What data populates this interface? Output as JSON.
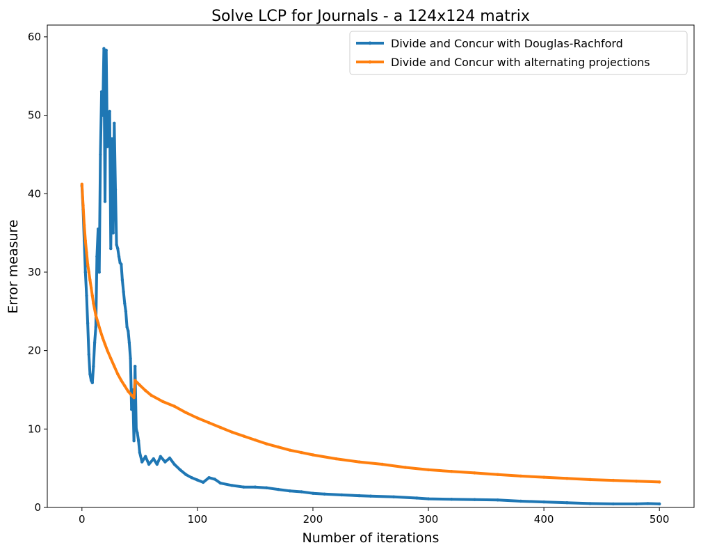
{
  "chart_data": {
    "type": "line",
    "title": "Solve LCP for Journals - a 124x124 matrix",
    "xlabel": "Number of iterations",
    "ylabel": "Error measure",
    "xlim": [
      -30,
      530
    ],
    "ylim": [
      0,
      61.5
    ],
    "xticks": [
      0,
      100,
      200,
      300,
      400,
      500
    ],
    "yticks": [
      0,
      10,
      20,
      30,
      40,
      50,
      60
    ],
    "grid": false,
    "legend": "top-right",
    "series": [
      {
        "name": "Divide and Concur with Douglas-Rachford",
        "color": "#1f77b4",
        "points": [
          [
            0,
            41
          ],
          [
            1,
            38
          ],
          [
            2,
            34
          ],
          [
            3,
            30
          ],
          [
            4,
            27
          ],
          [
            5,
            23.5
          ],
          [
            6,
            19.5
          ],
          [
            7,
            17
          ],
          [
            8,
            16.2
          ],
          [
            9,
            15.9
          ],
          [
            10,
            18
          ],
          [
            11,
            21
          ],
          [
            12,
            23
          ],
          [
            13,
            32
          ],
          [
            14,
            35.5
          ],
          [
            15,
            30
          ],
          [
            16,
            45
          ],
          [
            17,
            53
          ],
          [
            18,
            50
          ],
          [
            19,
            58.5
          ],
          [
            20,
            39
          ],
          [
            21,
            58.3
          ],
          [
            22,
            46
          ],
          [
            23,
            48
          ],
          [
            24,
            50.5
          ],
          [
            25,
            33
          ],
          [
            26,
            47
          ],
          [
            27,
            35
          ],
          [
            28,
            49
          ],
          [
            29,
            40.5
          ],
          [
            30,
            33.5
          ],
          [
            31,
            33
          ],
          [
            32,
            32
          ],
          [
            33,
            31.2
          ],
          [
            34,
            31
          ],
          [
            35,
            29
          ],
          [
            36,
            27.5
          ],
          [
            37,
            26
          ],
          [
            38,
            25
          ],
          [
            39,
            23
          ],
          [
            40,
            22.5
          ],
          [
            41,
            21
          ],
          [
            42,
            19
          ],
          [
            43,
            12.5
          ],
          [
            44,
            15
          ],
          [
            45,
            8.5
          ],
          [
            46,
            18
          ],
          [
            47,
            10
          ],
          [
            48,
            9.5
          ],
          [
            49,
            8.5
          ],
          [
            50,
            7
          ],
          [
            52,
            5.8
          ],
          [
            55,
            6.5
          ],
          [
            58,
            5.5
          ],
          [
            62,
            6.2
          ],
          [
            65,
            5.5
          ],
          [
            68,
            6.5
          ],
          [
            72,
            5.8
          ],
          [
            76,
            6.3
          ],
          [
            80,
            5.5
          ],
          [
            85,
            4.8
          ],
          [
            90,
            4.2
          ],
          [
            95,
            3.8
          ],
          [
            100,
            3.5
          ],
          [
            105,
            3.2
          ],
          [
            110,
            3.8
          ],
          [
            115,
            3.6
          ],
          [
            120,
            3.1
          ],
          [
            130,
            2.8
          ],
          [
            140,
            2.6
          ],
          [
            150,
            2.6
          ],
          [
            160,
            2.5
          ],
          [
            170,
            2.3
          ],
          [
            180,
            2.1
          ],
          [
            190,
            2.0
          ],
          [
            200,
            1.8
          ],
          [
            210,
            1.7
          ],
          [
            225,
            1.6
          ],
          [
            240,
            1.5
          ],
          [
            250,
            1.45
          ],
          [
            270,
            1.35
          ],
          [
            290,
            1.2
          ],
          [
            300,
            1.1
          ],
          [
            320,
            1.05
          ],
          [
            340,
            1.0
          ],
          [
            360,
            0.95
          ],
          [
            380,
            0.8
          ],
          [
            400,
            0.7
          ],
          [
            420,
            0.6
          ],
          [
            440,
            0.5
          ],
          [
            460,
            0.45
          ],
          [
            480,
            0.45
          ],
          [
            490,
            0.5
          ],
          [
            500,
            0.45
          ]
        ]
      },
      {
        "name": "Divide and Concur with alternating projections",
        "color": "#ff7f0e",
        "points": [
          [
            0,
            41.2
          ],
          [
            1,
            38.5
          ],
          [
            2,
            36
          ],
          [
            3,
            34
          ],
          [
            4,
            32.5
          ],
          [
            5,
            31
          ],
          [
            6,
            30
          ],
          [
            7,
            29
          ],
          [
            8,
            28
          ],
          [
            9,
            27
          ],
          [
            10,
            26
          ],
          [
            12,
            24.5
          ],
          [
            14,
            23.5
          ],
          [
            16,
            22.5
          ],
          [
            18,
            21.6
          ],
          [
            20,
            20.8
          ],
          [
            22,
            20.0
          ],
          [
            25,
            19.0
          ],
          [
            28,
            18.0
          ],
          [
            31,
            17.0
          ],
          [
            34,
            16.2
          ],
          [
            37,
            15.5
          ],
          [
            40,
            14.8
          ],
          [
            43,
            14.3
          ],
          [
            45,
            14.0
          ],
          [
            46,
            16.2
          ],
          [
            50,
            15.6
          ],
          [
            55,
            14.9
          ],
          [
            60,
            14.3
          ],
          [
            70,
            13.5
          ],
          [
            80,
            12.9
          ],
          [
            90,
            12.1
          ],
          [
            100,
            11.4
          ],
          [
            110,
            10.8
          ],
          [
            120,
            10.2
          ],
          [
            130,
            9.6
          ],
          [
            140,
            9.1
          ],
          [
            150,
            8.6
          ],
          [
            160,
            8.1
          ],
          [
            170,
            7.7
          ],
          [
            180,
            7.3
          ],
          [
            190,
            7.0
          ],
          [
            200,
            6.7
          ],
          [
            220,
            6.2
          ],
          [
            240,
            5.8
          ],
          [
            260,
            5.5
          ],
          [
            280,
            5.1
          ],
          [
            300,
            4.8
          ],
          [
            320,
            4.6
          ],
          [
            340,
            4.4
          ],
          [
            360,
            4.2
          ],
          [
            380,
            4.0
          ],
          [
            400,
            3.85
          ],
          [
            420,
            3.7
          ],
          [
            440,
            3.55
          ],
          [
            460,
            3.45
          ],
          [
            480,
            3.35
          ],
          [
            500,
            3.25
          ]
        ]
      }
    ]
  }
}
